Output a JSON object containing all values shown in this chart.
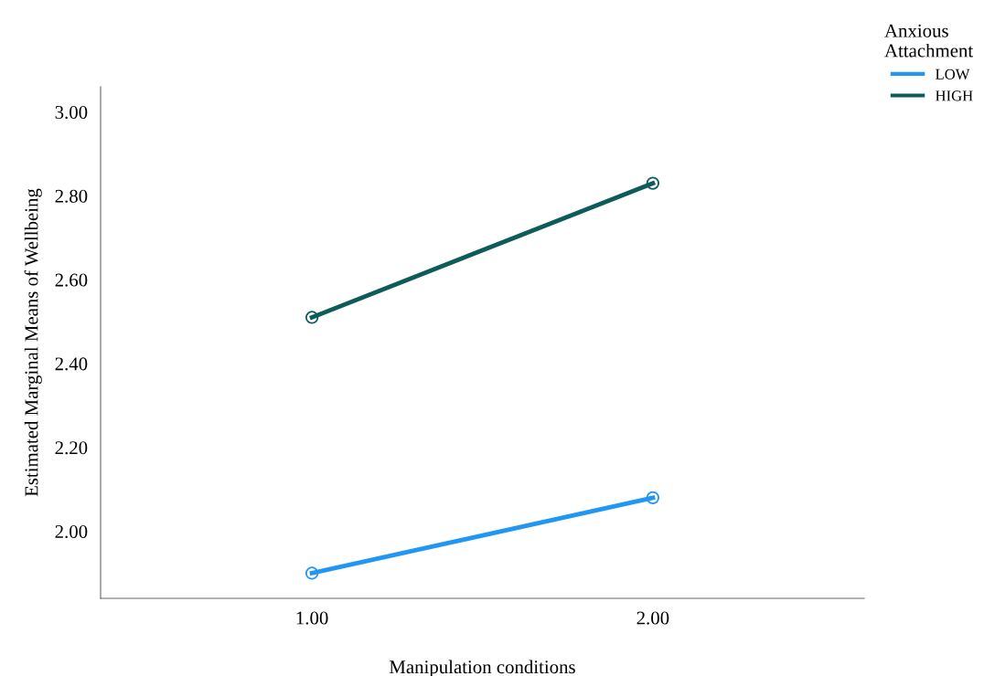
{
  "chart_data": {
    "type": "line",
    "xlabel": "Manipulation conditions",
    "ylabel": "Estimated Marginal Means of Wellbeing",
    "legend_title": "Anxious\nAttachment",
    "categories": [
      "1.00",
      "2.00"
    ],
    "series": [
      {
        "name": "LOW",
        "color": "#2196f3",
        "values": [
          1.9,
          2.08
        ]
      },
      {
        "name": "HIGH",
        "color": "#0d5c5a",
        "values": [
          2.51,
          2.83
        ]
      }
    ],
    "ylim": [
      1.84,
      3.06
    ],
    "yticks": [
      {
        "value": 2.0,
        "label": "2.00"
      },
      {
        "value": 2.2,
        "label": "2.20"
      },
      {
        "value": 2.4,
        "label": "2.40"
      },
      {
        "value": 2.6,
        "label": "2.60"
      },
      {
        "value": 2.8,
        "label": "2.80"
      },
      {
        "value": 3.0,
        "label": "3.00"
      }
    ],
    "grid": false,
    "legend": "top right",
    "marker": "circle",
    "line_style": "solid"
  }
}
